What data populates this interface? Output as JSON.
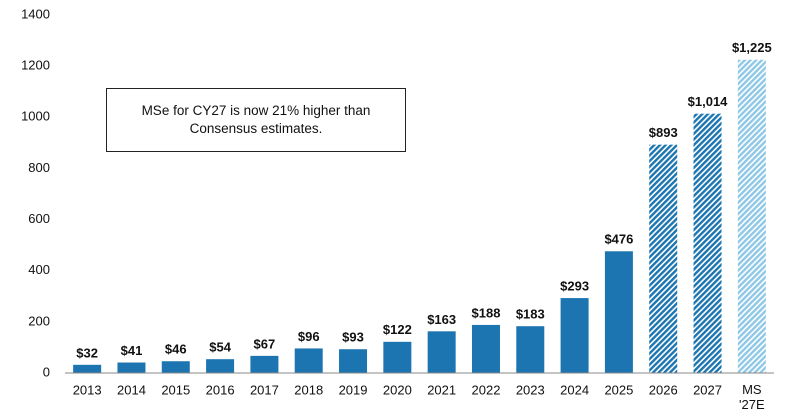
{
  "chart_data": {
    "type": "bar",
    "annotation": "MSe for CY27 is now 21% higher than Consensus estimates.",
    "categories": [
      "2013",
      "2014",
      "2015",
      "2016",
      "2017",
      "2018",
      "2019",
      "2020",
      "2021",
      "2022",
      "2023",
      "2024",
      "2025",
      "2026",
      "2027",
      "MS '27E"
    ],
    "values": [
      32,
      41,
      46,
      54,
      67,
      96,
      93,
      122,
      163,
      188,
      183,
      293,
      476,
      893,
      1014,
      1225
    ],
    "value_labels": [
      "$32",
      "$41",
      "$46",
      "$54",
      "$67",
      "$96",
      "$93",
      "$122",
      "$163",
      "$188",
      "$183",
      "$293",
      "$476",
      "$893",
      "$1,014",
      "$1,225"
    ],
    "colors": [
      "#1c75b0",
      "#1c75b0",
      "#1c75b0",
      "#1c75b0",
      "#1c75b0",
      "#1c75b0",
      "#1c75b0",
      "#1c75b0",
      "#1c75b0",
      "#1c75b0",
      "#1c75b0",
      "#1c75b0",
      "#1c75b0",
      "#1c75b0",
      "#1c75b0",
      "#8ec8e6"
    ],
    "hatched": [
      false,
      false,
      false,
      false,
      false,
      false,
      false,
      false,
      false,
      false,
      false,
      false,
      false,
      true,
      true,
      true
    ],
    "ylim": [
      0,
      1400
    ],
    "yticks": [
      0,
      200,
      400,
      600,
      800,
      1000,
      1200,
      1400
    ],
    "grid": false
  }
}
